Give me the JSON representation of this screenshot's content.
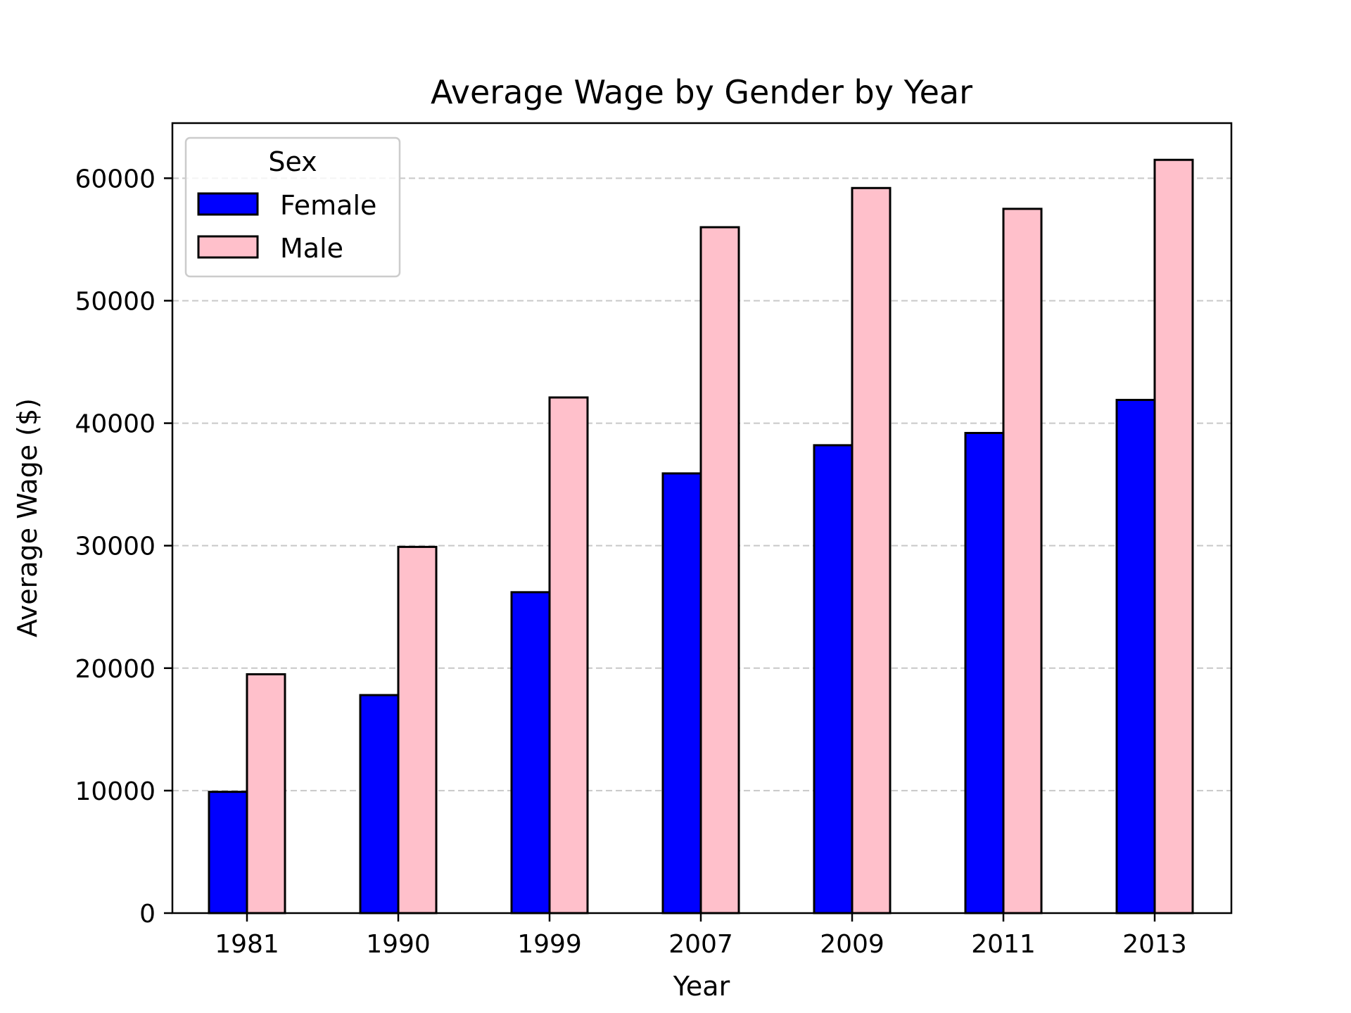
{
  "chart_data": {
    "type": "bar",
    "title": "Average Wage by Gender by Year",
    "xlabel": "Year",
    "ylabel": "Average Wage ($)",
    "categories": [
      "1981",
      "1990",
      "1999",
      "2007",
      "2009",
      "2011",
      "2013"
    ],
    "series": [
      {
        "name": "Female",
        "color": "#0000ff",
        "values": [
          9900,
          17800,
          26200,
          35900,
          38200,
          39200,
          41900
        ]
      },
      {
        "name": "Male",
        "color": "#ffc0cb",
        "values": [
          19500,
          29900,
          42100,
          56000,
          59200,
          57500,
          61500
        ]
      }
    ],
    "ylim": [
      0,
      64500
    ],
    "yticks": [
      0,
      10000,
      20000,
      30000,
      40000,
      50000,
      60000
    ],
    "grid": "y-dashed",
    "legend": {
      "title": "Sex",
      "position": "top-left"
    }
  }
}
